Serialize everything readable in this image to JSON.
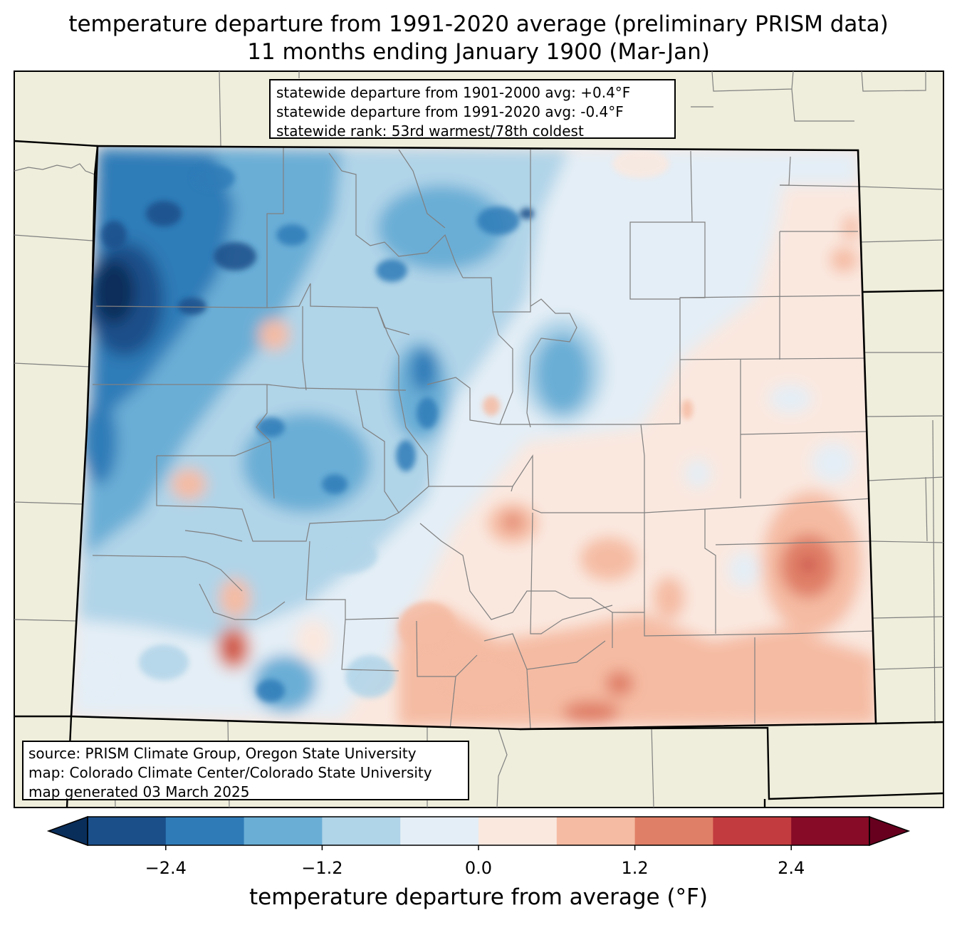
{
  "title": {
    "line1": "temperature departure from 1991-2020 average (preliminary PRISM data)",
    "line2": "11 months ending January 1900 (Mar-Jan)"
  },
  "stats": {
    "line1": "statewide departure from 1901-2000 avg: +0.4°F",
    "line2": "statewide departure from 1991-2020 avg: -0.4°F",
    "line3": "statewide rank: 53rd warmest/78th coldest"
  },
  "source": {
    "line1": "source: PRISM Climate Group, Oregon State University",
    "line2": "map: Colorado Climate Center/Colorado State University",
    "line3": "map generated 03 March 2025"
  },
  "colorbar": {
    "label": "temperature departure from average (°F)",
    "ticks": [
      "−2.4",
      "−1.2",
      "0.0",
      "1.2",
      "2.4"
    ],
    "tick_values": [
      -2.4,
      -1.2,
      0.0,
      1.2,
      2.4
    ],
    "bins": [
      -3.0,
      -2.4,
      -1.8,
      -1.2,
      -0.6,
      0.0,
      0.6,
      1.2,
      1.8,
      2.4,
      3.0
    ],
    "colors": [
      "#1a4f8a",
      "#2f7bb8",
      "#6aaed6",
      "#b0d4e8",
      "#e4eef6",
      "#fae8df",
      "#f5bba3",
      "#e07f67",
      "#c23b3e",
      "#870b26"
    ],
    "under_color": "#0a2e5a",
    "over_color": "#67001f"
  },
  "colors": {
    "land": "#efeedc",
    "border": "#000000",
    "county": "#808080"
  }
}
